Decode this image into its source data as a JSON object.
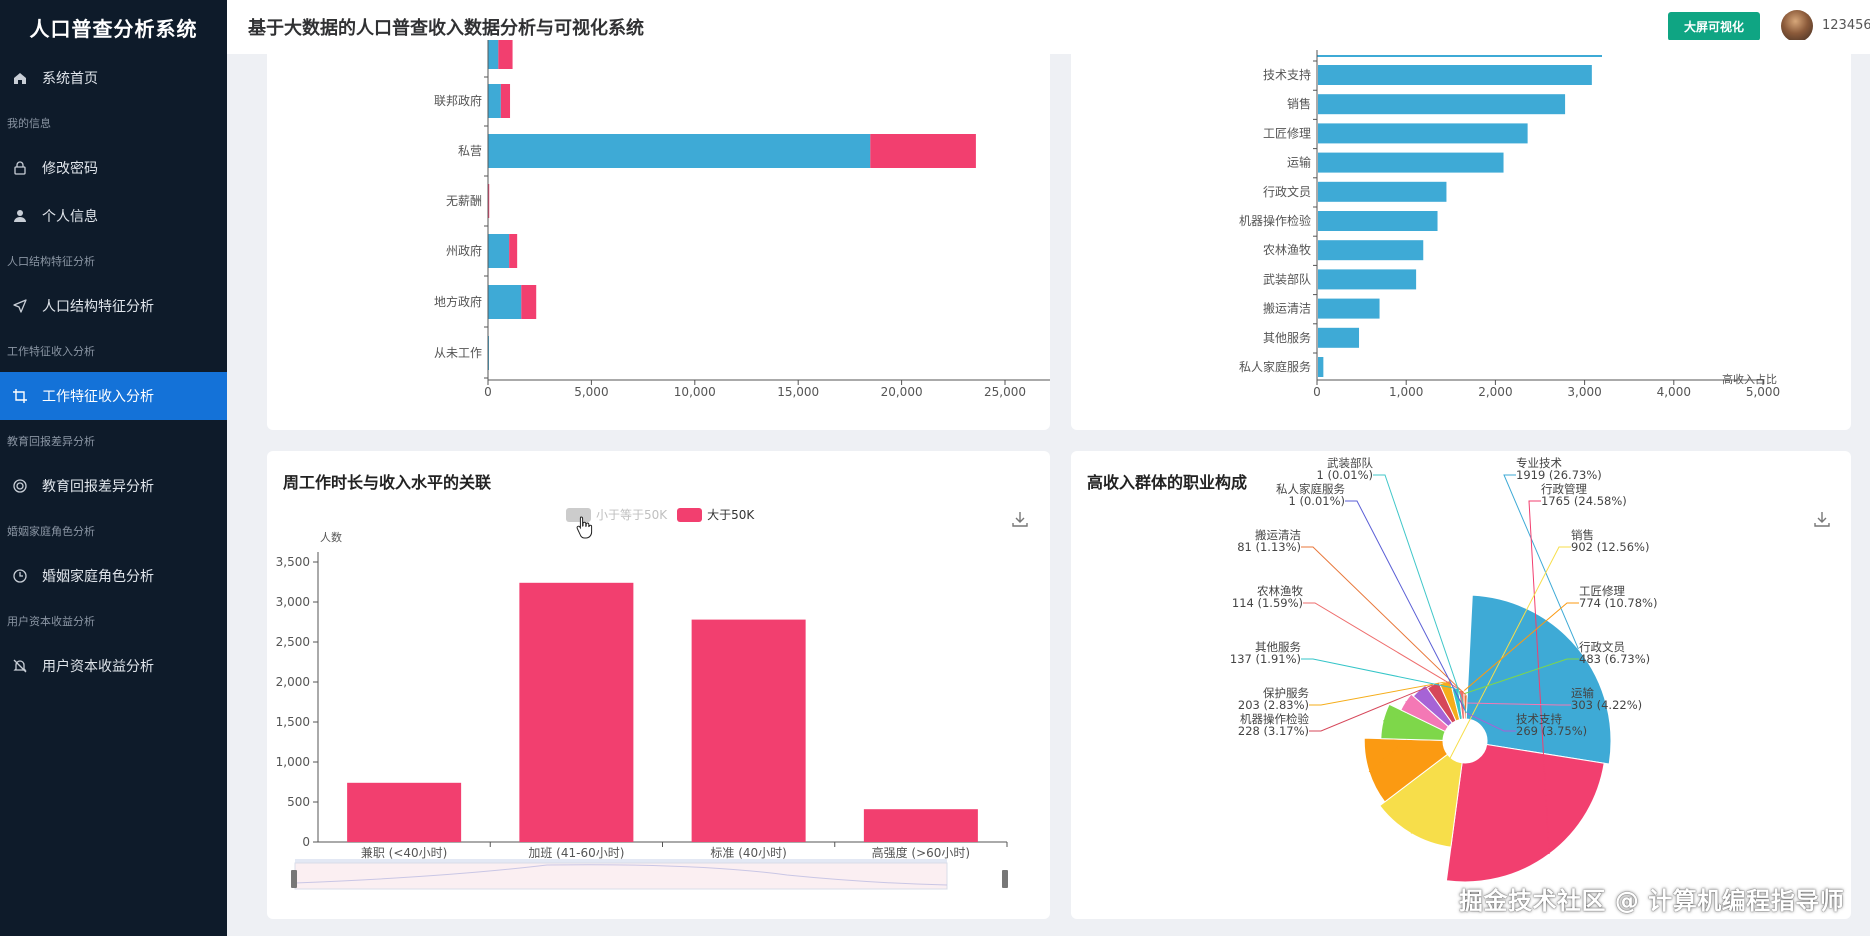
{
  "sidebar": {
    "brand": "人口普查分析系统",
    "items": [
      {
        "type": "item",
        "label": "系统首页",
        "icon": "home-icon"
      },
      {
        "type": "group",
        "label": "我的信息"
      },
      {
        "type": "item",
        "label": "修改密码",
        "icon": "lock-icon"
      },
      {
        "type": "item",
        "label": "个人信息",
        "icon": "user-icon"
      },
      {
        "type": "group",
        "label": "人口结构特征分析"
      },
      {
        "type": "item",
        "label": "人口结构特征分析",
        "icon": "location-arrow-icon"
      },
      {
        "type": "group",
        "label": "工作特征收入分析"
      },
      {
        "type": "item",
        "label": "工作特征收入分析",
        "icon": "crop-icon",
        "active": true
      },
      {
        "type": "group",
        "label": "教育回报差异分析"
      },
      {
        "type": "item",
        "label": "教育回报差异分析",
        "icon": "target-icon"
      },
      {
        "type": "group",
        "label": "婚姻家庭角色分析"
      },
      {
        "type": "item",
        "label": "婚姻家庭角色分析",
        "icon": "clock-icon"
      },
      {
        "type": "group",
        "label": "用户资本收益分析"
      },
      {
        "type": "item",
        "label": "用户资本收益分析",
        "icon": "bell-off-icon"
      }
    ]
  },
  "header": {
    "title": "基于大数据的人口普查收入数据分析与可视化系统",
    "bigscreen_label": "大屏可视化",
    "username": "123456"
  },
  "colors": {
    "blue": "#3eaad6",
    "pink": "#f23f6f",
    "active": "#1472d8",
    "sidebar": "#0e1b2a",
    "green": "#0fa583"
  },
  "charts": {
    "workclass": {
      "chart_data": {
        "type": "bar",
        "orientation": "horizontal",
        "stacked": true,
        "categories": [
          "",
          "联邦政府",
          "私营",
          "无薪酬",
          "州政府",
          "地方政府",
          "从未工作"
        ],
        "series": [
          {
            "values": [
              450,
              560,
              16650,
              10,
              920,
              1450,
              6
            ]
          },
          {
            "values": [
              620,
              400,
              4600,
              5,
              350,
              650,
              0
            ]
          }
        ],
        "xticks": [
          "0",
          "5,000",
          "10,000",
          "15,000",
          "20,000",
          "25,000"
        ],
        "xlim": [
          0,
          25000
        ]
      }
    },
    "occupation_high": {
      "xlabel": "高收入占比",
      "chart_data": {
        "type": "bar",
        "orientation": "horizontal",
        "categories": [
          "技术支持",
          "销售",
          "工匠修理",
          "运输",
          "行政文员",
          "机器操作检验",
          "农林渔牧",
          "武装部队",
          "搬运清洁",
          "其他服务",
          "私人家庭服务"
        ],
        "values": [
          3070,
          2770,
          2350,
          2080,
          1440,
          1340,
          1180,
          1100,
          690,
          460,
          60
        ],
        "xticks": [
          "0",
          "1,000",
          "2,000",
          "3,000",
          "4,000",
          "5,000"
        ],
        "xlim": [
          0,
          5000
        ]
      }
    },
    "hours": {
      "title": "周工作时长与收入水平的关联",
      "ylabel": "人数",
      "legend": [
        {
          "label": "小于等于50K",
          "color": "#cccccc",
          "disabled": true
        },
        {
          "label": "大于50K",
          "color": "#f23f6f"
        }
      ],
      "chart_data": {
        "type": "bar",
        "categories": [
          "兼职 (<40小时)",
          "加班 (41-60小时)",
          "标准 (40小时)",
          "高强度 (>60小时)"
        ],
        "series": [
          {
            "name": "大于50K",
            "values": [
              740,
              3240,
              2780,
              410
            ]
          }
        ],
        "yticks": [
          "0",
          "500",
          "1,000",
          "1,500",
          "2,000",
          "2,500",
          "3,000",
          "3,500"
        ],
        "ylim": [
          0,
          3500
        ]
      }
    },
    "pie": {
      "title": "高收入群体的职业构成",
      "chart_data": {
        "type": "pie",
        "rose": true,
        "slices": [
          {
            "name": "专业技术",
            "value": 1919,
            "pct": "26.73%",
            "color": "#3eaad6"
          },
          {
            "name": "行政管理",
            "value": 1765,
            "pct": "24.58%",
            "color": "#f23f6f"
          },
          {
            "name": "销售",
            "value": 902,
            "pct": "12.56%",
            "color": "#f7de4a"
          },
          {
            "name": "工匠修理",
            "value": 774,
            "pct": "10.78%",
            "color": "#fb9a12"
          },
          {
            "name": "行政文员",
            "value": 483,
            "pct": "6.73%",
            "color": "#7ed74a"
          },
          {
            "name": "运输",
            "value": 303,
            "pct": "4.22%",
            "color": "#f478b5"
          },
          {
            "name": "技术支持",
            "value": 269,
            "pct": "3.75%",
            "color": "#a663d6"
          },
          {
            "name": "机器操作检验",
            "value": 228,
            "pct": "3.17%",
            "color": "#d6475a"
          },
          {
            "name": "保护服务",
            "value": 203,
            "pct": "2.83%",
            "color": "#f5ad1a"
          },
          {
            "name": "其他服务",
            "value": 137,
            "pct": "1.91%",
            "color": "#35c5c8"
          },
          {
            "name": "农林渔牧",
            "value": 114,
            "pct": "1.59%",
            "color": "#ee6d6d"
          },
          {
            "name": "搬运清洁",
            "value": 81,
            "pct": "1.13%",
            "color": "#e8773a"
          },
          {
            "name": "私人家庭服务",
            "value": 1,
            "pct": "0.01%",
            "color": "#5b5fd6"
          },
          {
            "name": "武装部队",
            "value": 1,
            "pct": "0.01%",
            "color": "#41c7c9"
          }
        ]
      }
    }
  },
  "watermark": "掘金技术社区 @ 计算机编程指导师"
}
